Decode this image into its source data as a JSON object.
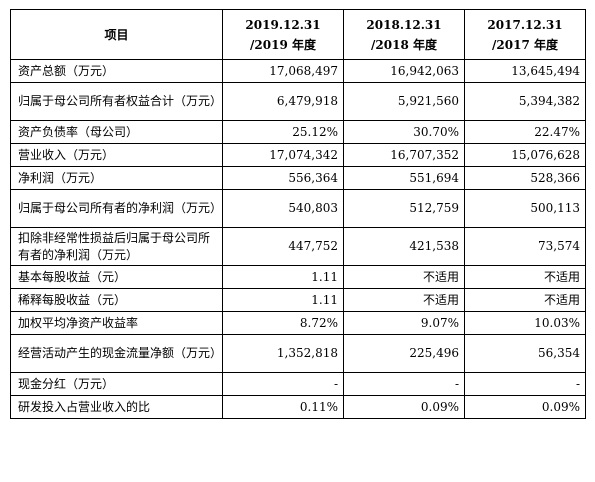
{
  "table": {
    "headers": [
      "项目",
      "2019.12.31\n/2019 年度",
      "2018.12.31\n/2018 年度",
      "2017.12.31\n/2017 年度"
    ],
    "rows": [
      {
        "label": "资产总额（万元）",
        "v": [
          "17,068,497",
          "16,942,063",
          "13,645,494"
        ]
      },
      {
        "label": "归属于母公司所有者权益合计（万元）",
        "v": [
          "6,479,918",
          "5,921,560",
          "5,394,382"
        ]
      },
      {
        "label": "资产负债率（母公司）",
        "v": [
          "25.12%",
          "30.70%",
          "22.47%"
        ]
      },
      {
        "label": "营业收入（万元）",
        "v": [
          "17,074,342",
          "16,707,352",
          "15,076,628"
        ]
      },
      {
        "label": "净利润（万元）",
        "v": [
          "556,364",
          "551,694",
          "528,366"
        ]
      },
      {
        "label": "归属于母公司所有者的净利润（万元）",
        "v": [
          "540,803",
          "512,759",
          "500,113"
        ]
      },
      {
        "label": "扣除非经常性损益后归属于母公司所有者的净利润（万元）",
        "v": [
          "447,752",
          "421,538",
          "73,574"
        ]
      },
      {
        "label": "基本每股收益（元）",
        "v": [
          "1.11",
          "不适用",
          "不适用"
        ]
      },
      {
        "label": "稀释每股收益（元）",
        "v": [
          "1.11",
          "不适用",
          "不适用"
        ]
      },
      {
        "label": "加权平均净资产收益率",
        "v": [
          "8.72%",
          "9.07%",
          "10.03%"
        ]
      },
      {
        "label": "经营活动产生的现金流量净额（万元）",
        "v": [
          "1,352,818",
          "225,496",
          "56,354"
        ]
      },
      {
        "label": "现金分红（万元）",
        "v": [
          "-",
          "-",
          "-"
        ]
      },
      {
        "label": "研发投入占营业收入的比",
        "v": [
          "0.11%",
          "0.09%",
          "0.09%"
        ]
      }
    ]
  }
}
